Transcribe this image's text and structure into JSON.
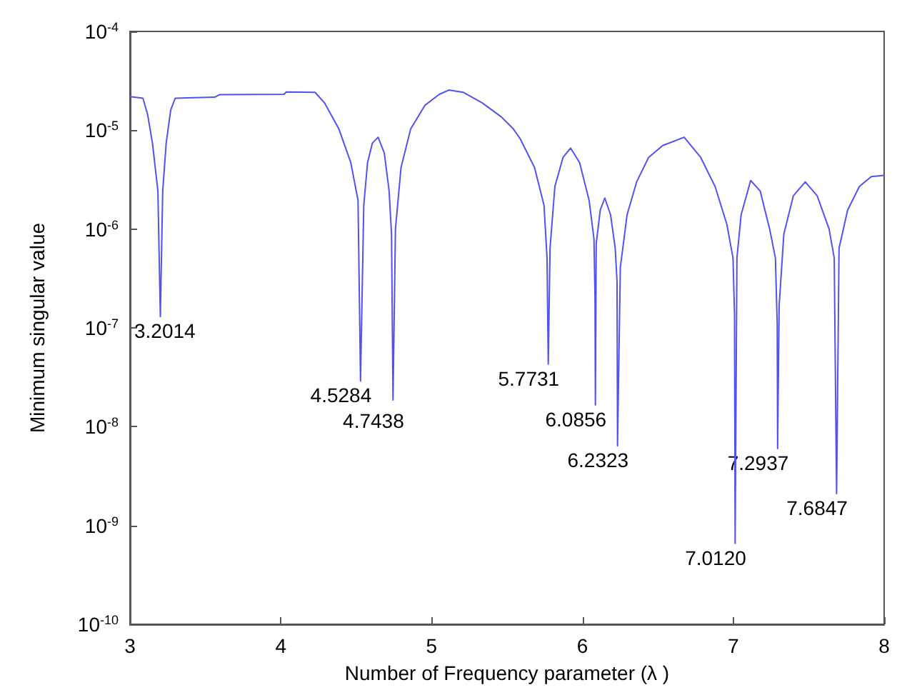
{
  "chart_data": {
    "type": "line",
    "xlabel": "Number of Frequency parameter (λ )",
    "ylabel": "Minimum singular value",
    "log": "y",
    "grid": false,
    "marker": "none",
    "line_style": "solid",
    "xlim": [
      3,
      8
    ],
    "xticks": [
      3,
      4,
      5,
      6,
      7,
      8
    ],
    "ylim": [
      1e-10,
      0.0001
    ],
    "yticks": [
      {
        "value": 1e-10,
        "label": "10$^{-10}$"
      },
      {
        "value": 1e-09,
        "label": "10$^{-9}$"
      },
      {
        "value": 1e-08,
        "label": "10$^{-8}$"
      },
      {
        "value": 1e-07,
        "label": "10$^{-7}$"
      },
      {
        "value": 1e-06,
        "label": "10$^{-6}$"
      },
      {
        "value": 1e-05,
        "label": "10$^{-5}$"
      },
      {
        "value": 0.0001,
        "label": "10$^{-4}$"
      }
    ],
    "x": [
      3.0,
      3.086,
      3.117,
      3.149,
      3.185,
      3.2014,
      3.217,
      3.24,
      3.27,
      3.3,
      3.561,
      3.593,
      4.021,
      4.036,
      4.227,
      4.29,
      4.385,
      4.464,
      4.512,
      4.5284,
      4.55,
      4.575,
      4.607,
      4.645,
      4.686,
      4.718,
      4.734,
      4.7438,
      4.76,
      4.797,
      4.861,
      4.956,
      5.051,
      5.114,
      5.209,
      5.336,
      5.463,
      5.542,
      5.587,
      5.682,
      5.745,
      5.765,
      5.7731,
      5.785,
      5.817,
      5.871,
      5.921,
      5.981,
      6.044,
      6.076,
      6.083,
      6.0856,
      6.091,
      6.118,
      6.148,
      6.186,
      6.217,
      6.229,
      6.2323,
      6.251,
      6.296,
      6.359,
      6.438,
      6.532,
      6.674,
      6.784,
      6.879,
      6.957,
      6.998,
      7.008,
      7.012,
      7.024,
      7.052,
      7.115,
      7.178,
      7.241,
      7.279,
      7.291,
      7.2937,
      7.304,
      7.335,
      7.398,
      7.477,
      7.556,
      7.635,
      7.669,
      7.6847,
      7.701,
      7.758,
      7.836,
      7.915,
      8.0
    ],
    "series": [
      {
        "color": "#5252f0",
        "values": [
          2.19e-05,
          2.11e-05,
          1.44e-05,
          7.4e-06,
          2.43e-06,
          1.3e-07,
          2.43e-06,
          7.4e-06,
          1.6e-05,
          2.11e-05,
          2.16e-05,
          2.29e-05,
          2.31e-05,
          2.44e-05,
          2.42e-05,
          1.89e-05,
          1.03e-05,
          4.7e-06,
          1.95e-06,
          2.9e-08,
          1.74e-06,
          4.7e-06,
          7.4e-06,
          8.5e-06,
          5.9e-06,
          2.43e-06,
          8.9e-07,
          1.86e-08,
          1e-06,
          4.2e-06,
          1.03e-05,
          1.79e-05,
          2.31e-05,
          2.55e-05,
          2.42e-05,
          1.89e-05,
          1.36e-05,
          1.03e-05,
          8.2e-06,
          4.2e-06,
          1.74e-06,
          5.1e-07,
          4.3e-08,
          6.4e-07,
          2.7e-06,
          5.3e-06,
          6.6e-06,
          4.7e-06,
          1.95e-06,
          8e-07,
          2.1e-07,
          1.66e-08,
          7.1e-07,
          1.56e-06,
          2.06e-06,
          1.4e-06,
          6.4e-07,
          2.95e-07,
          6.4e-09,
          4.1e-07,
          1.4e-06,
          3e-06,
          5.3e-06,
          7e-06,
          8.5e-06,
          5.3e-06,
          2.7e-06,
          1.12e-06,
          5.1e-07,
          1.36e-07,
          6.6e-10,
          5.1e-07,
          1.4e-06,
          3.1e-06,
          2.43e-06,
          1e-06,
          5.1e-07,
          1.09e-07,
          6e-09,
          1.69e-07,
          8.9e-07,
          2.17e-06,
          3e-06,
          2.17e-06,
          1e-06,
          5.1e-07,
          2.1e-09,
          6.4e-07,
          1.56e-06,
          2.7e-06,
          3.4e-06,
          3.5e-06
        ]
      }
    ],
    "annotations": [
      {
        "text": "3.2014",
        "x": 3.2014,
        "y": 1.3e-07
      },
      {
        "text": "4.5284",
        "x": 4.5284,
        "y": 2.9e-08
      },
      {
        "text": "4.7438",
        "x": 4.7438,
        "y": 1.86e-08
      },
      {
        "text": "5.7731",
        "x": 5.7731,
        "y": 4.3e-08
      },
      {
        "text": "6.0856",
        "x": 6.0856,
        "y": 1.66e-08
      },
      {
        "text": "6.2323",
        "x": 6.2323,
        "y": 6.4e-09
      },
      {
        "text": "7.0120",
        "x": 7.012,
        "y": 6.6e-10
      },
      {
        "text": "7.2937",
        "x": 7.2937,
        "y": 6e-09
      },
      {
        "text": "7.6847",
        "x": 7.6847,
        "y": 2.1e-09
      }
    ]
  }
}
